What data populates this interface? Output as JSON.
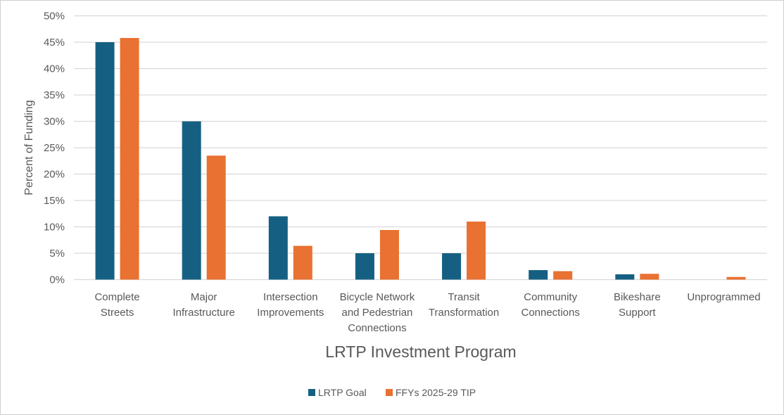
{
  "chart_data": {
    "type": "bar",
    "title": "",
    "xlabel": "LRTP Investment Program",
    "ylabel": "Percent of Funding",
    "ylim": [
      0,
      50
    ],
    "yticks": [
      "0%",
      "5%",
      "10%",
      "15%",
      "20%",
      "25%",
      "30%",
      "35%",
      "40%",
      "45%",
      "50%"
    ],
    "grid": true,
    "legend_position": "bottom",
    "categories": [
      [
        "Complete",
        "Streets"
      ],
      [
        "Major",
        "Infrastructure"
      ],
      [
        "Intersection",
        "Improvements"
      ],
      [
        "Bicycle Network",
        "and Pedestrian",
        "Connections"
      ],
      [
        "Transit",
        "Transformation"
      ],
      [
        "Community",
        "Connections"
      ],
      [
        "Bikeshare",
        "Support"
      ],
      [
        "Unprogrammed"
      ]
    ],
    "series": [
      {
        "name": "LRTP Goal",
        "color": "#156082",
        "values": [
          45,
          30,
          12,
          5,
          5,
          1.8,
          1.0,
          0
        ]
      },
      {
        "name": "FFYs 2025-29 TIP",
        "color": "#E97132",
        "values": [
          45.8,
          23.5,
          6.4,
          9.4,
          11.0,
          1.6,
          1.1,
          0.5
        ]
      }
    ]
  }
}
